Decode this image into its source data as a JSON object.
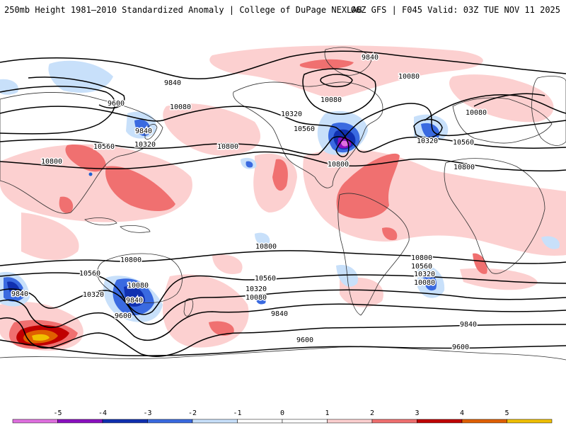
{
  "header": {
    "left_title": "250mb Height 1981–2010 Standardized Anomaly | College of DuPage NEXLAB",
    "right_title": "06Z GFS | F045 Valid: 03Z TUE NOV 11 2025"
  },
  "colors": {
    "neg5": "#e070e0",
    "neg4": "#8a10c0",
    "neg3": "#1030b0",
    "neg2": "#3a6ae0",
    "neg1": "#c8e0fa",
    "pos1": "#fcd0d0",
    "pos2": "#f07070",
    "pos3": "#c00000",
    "pos4": "#e06000",
    "pos5": "#f0c000",
    "contour": "#000000",
    "coast": "#303030"
  },
  "colorbar": {
    "ticks": [
      "-5",
      "-4",
      "-3",
      "-2",
      "-1",
      "0",
      "1",
      "2",
      "3",
      "4",
      "5"
    ]
  },
  "contour_labels": [
    {
      "name": "label-9840-top",
      "text": "9840"
    },
    {
      "name": "label-9840-alaska",
      "text": "9840"
    },
    {
      "name": "label-10080-greenland",
      "text": "10080"
    },
    {
      "name": "label-10080-hudson",
      "text": "10080"
    },
    {
      "name": "label-9600-pacific",
      "text": "9600"
    },
    {
      "name": "label-10080-westnp",
      "text": "10080"
    },
    {
      "name": "label-10320-canada",
      "text": "10320"
    },
    {
      "name": "label-10560-us",
      "text": "10560"
    },
    {
      "name": "label-9840-japan",
      "text": "9840"
    },
    {
      "name": "label-10320-japan",
      "text": "10320"
    },
    {
      "name": "label-10560-china",
      "text": "10560"
    },
    {
      "name": "label-10800-npac",
      "text": "10800"
    },
    {
      "name": "label-10800-asia",
      "text": "10800"
    },
    {
      "name": "label-10800-gulf",
      "text": "10800"
    },
    {
      "name": "label-10080-europe",
      "text": "10080"
    },
    {
      "name": "label-10320-atlantic",
      "text": "10320"
    },
    {
      "name": "label-10560-europe",
      "text": "10560"
    },
    {
      "name": "label-10800-africa",
      "text": "10800"
    },
    {
      "name": "label-10800-spac",
      "text": "10800"
    },
    {
      "name": "label-10800-australia",
      "text": "10800"
    },
    {
      "name": "label-10800-satl",
      "text": "10800"
    },
    {
      "name": "label-10560-satl",
      "text": "10560"
    },
    {
      "name": "label-10320-satl",
      "text": "10320"
    },
    {
      "name": "label-10080-satl",
      "text": "10080"
    },
    {
      "name": "label-10560-aus",
      "text": "10560"
    },
    {
      "name": "label-10080-aus",
      "text": "10080"
    },
    {
      "name": "label-10320-aus",
      "text": "10320"
    },
    {
      "name": "label-9840-aus",
      "text": "9840"
    },
    {
      "name": "label-9840-sw",
      "text": "9840"
    },
    {
      "name": "label-9600-aus",
      "text": "9600"
    },
    {
      "name": "label-10560-spac",
      "text": "10560"
    },
    {
      "name": "label-10320-spac",
      "text": "10320"
    },
    {
      "name": "label-10080-spac",
      "text": "10080"
    },
    {
      "name": "label-9840-spac",
      "text": "9840"
    },
    {
      "name": "label-9840-satl2",
      "text": "9840"
    },
    {
      "name": "label-9600-south",
      "text": "9600"
    },
    {
      "name": "label-9600-southeast",
      "text": "9600"
    }
  ]
}
